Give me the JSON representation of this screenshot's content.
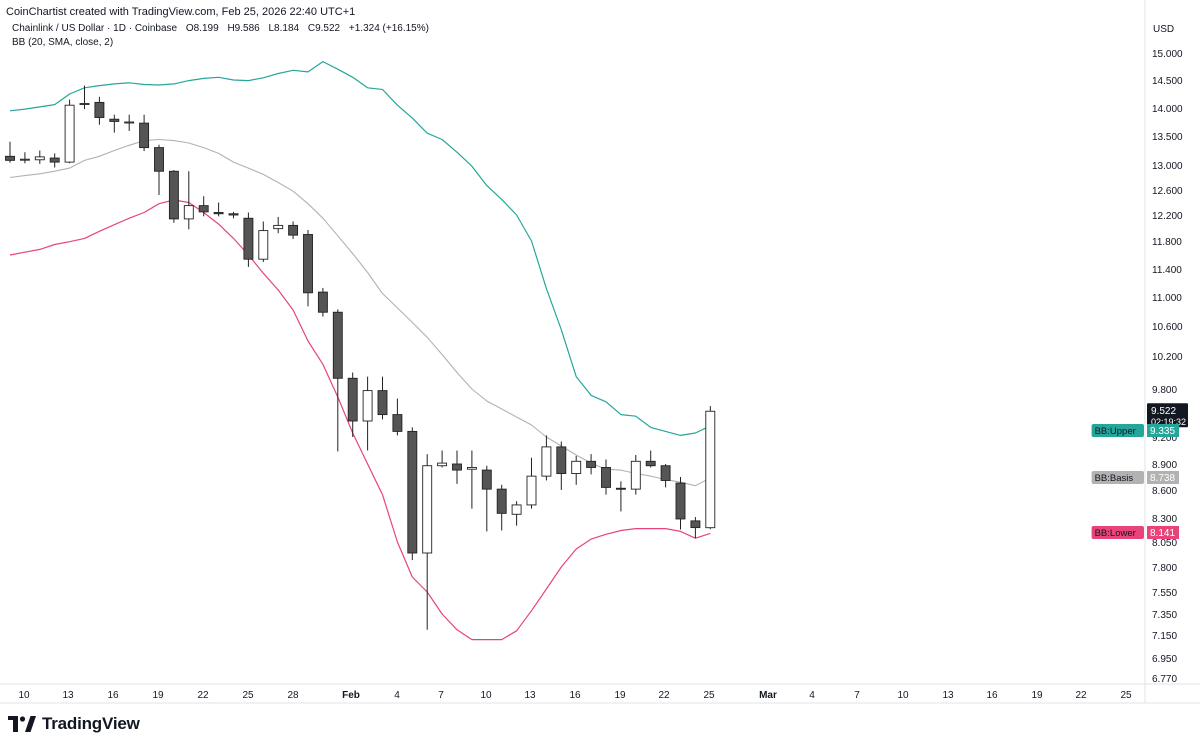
{
  "header": {
    "attribution": "CoinChartist created with TradingView.com, Feb 25, 2026 22:40 UTC+1",
    "symbol": "Chainlink / US Dollar · 1D · Coinbase",
    "open": "O8.199",
    "high": "H9.586",
    "low": "L8.184",
    "close": "C9.522",
    "change": "+1.324 (+16.15%)",
    "indicator": "BB (20, SMA, close, 2)"
  },
  "brand": {
    "name": "TradingView"
  },
  "colors": {
    "up_body": "#ffffff",
    "down_body": "#555555",
    "candle_border": "#222222",
    "bb_upper": "#26a69a",
    "bb_basis": "#b2b2b2",
    "bb_lower": "#e8447a"
  },
  "chart_data": {
    "type": "candlestick",
    "currency": "USD",
    "y_range": [
      6.65,
      15.2
    ],
    "y_ticks": [
      "15.000",
      "14.500",
      "14.000",
      "13.500",
      "13.000",
      "12.600",
      "12.200",
      "11.800",
      "11.400",
      "11.000",
      "10.600",
      "10.200",
      "9.800",
      "9.200",
      "8.900",
      "8.600",
      "8.300",
      "8.050",
      "7.800",
      "7.550",
      "7.350",
      "7.150",
      "6.950",
      "6.770"
    ],
    "x_ticks": [
      "10",
      "13",
      "16",
      "19",
      "22",
      "25",
      "28",
      "Feb",
      "4",
      "7",
      "10",
      "13",
      "16",
      "19",
      "22",
      "25",
      "Mar",
      "4",
      "7",
      "10",
      "13",
      "16",
      "19",
      "22",
      "25"
    ],
    "candles": [
      {
        "o": 13.15,
        "h": 13.4,
        "l": 13.04,
        "c": 13.08
      },
      {
        "o": 13.1,
        "h": 13.22,
        "l": 13.03,
        "c": 13.1
      },
      {
        "o": 13.09,
        "h": 13.25,
        "l": 13.02,
        "c": 13.14
      },
      {
        "o": 13.12,
        "h": 13.2,
        "l": 12.96,
        "c": 13.05
      },
      {
        "o": 13.05,
        "h": 14.15,
        "l": 13.03,
        "c": 14.05
      },
      {
        "o": 14.07,
        "h": 14.4,
        "l": 13.98,
        "c": 14.08
      },
      {
        "o": 14.1,
        "h": 14.2,
        "l": 13.7,
        "c": 13.83
      },
      {
        "o": 13.8,
        "h": 13.88,
        "l": 13.56,
        "c": 13.76
      },
      {
        "o": 13.75,
        "h": 13.88,
        "l": 13.59,
        "c": 13.75
      },
      {
        "o": 13.73,
        "h": 13.88,
        "l": 13.24,
        "c": 13.3
      },
      {
        "o": 13.3,
        "h": 13.35,
        "l": 12.52,
        "c": 12.9
      },
      {
        "o": 12.9,
        "h": 12.92,
        "l": 12.08,
        "c": 12.14
      },
      {
        "o": 12.14,
        "h": 12.9,
        "l": 11.98,
        "c": 12.35
      },
      {
        "o": 12.35,
        "h": 12.5,
        "l": 12.18,
        "c": 12.25
      },
      {
        "o": 12.24,
        "h": 12.4,
        "l": 12.18,
        "c": 12.22
      },
      {
        "o": 12.22,
        "h": 12.25,
        "l": 12.15,
        "c": 12.2
      },
      {
        "o": 12.15,
        "h": 12.24,
        "l": 11.43,
        "c": 11.54
      },
      {
        "o": 11.54,
        "h": 12.1,
        "l": 11.5,
        "c": 11.96
      },
      {
        "o": 11.99,
        "h": 12.17,
        "l": 11.92,
        "c": 12.04
      },
      {
        "o": 12.04,
        "h": 12.1,
        "l": 11.83,
        "c": 11.89
      },
      {
        "o": 11.9,
        "h": 11.97,
        "l": 10.87,
        "c": 11.06
      },
      {
        "o": 11.07,
        "h": 11.13,
        "l": 10.73,
        "c": 10.79
      },
      {
        "o": 10.79,
        "h": 10.83,
        "l": 9.04,
        "c": 9.93
      },
      {
        "o": 9.93,
        "h": 10.0,
        "l": 9.2,
        "c": 9.4
      },
      {
        "o": 9.4,
        "h": 9.95,
        "l": 9.05,
        "c": 9.78
      },
      {
        "o": 9.78,
        "h": 9.95,
        "l": 9.42,
        "c": 9.48
      },
      {
        "o": 9.48,
        "h": 9.68,
        "l": 9.22,
        "c": 9.27
      },
      {
        "o": 9.27,
        "h": 9.32,
        "l": 7.87,
        "c": 7.94
      },
      {
        "o": 7.94,
        "h": 9.01,
        "l": 7.2,
        "c": 8.88
      },
      {
        "o": 8.88,
        "h": 9.05,
        "l": 8.86,
        "c": 8.91
      },
      {
        "o": 8.9,
        "h": 9.05,
        "l": 8.67,
        "c": 8.83
      },
      {
        "o": 8.84,
        "h": 9.05,
        "l": 8.4,
        "c": 8.86
      },
      {
        "o": 8.83,
        "h": 8.88,
        "l": 8.16,
        "c": 8.61
      },
      {
        "o": 8.61,
        "h": 8.66,
        "l": 8.17,
        "c": 8.35
      },
      {
        "o": 8.34,
        "h": 8.48,
        "l": 8.22,
        "c": 8.44
      },
      {
        "o": 8.44,
        "h": 8.97,
        "l": 8.4,
        "c": 8.76
      },
      {
        "o": 8.76,
        "h": 9.22,
        "l": 8.71,
        "c": 9.09
      },
      {
        "o": 9.09,
        "h": 9.15,
        "l": 8.6,
        "c": 8.79
      },
      {
        "o": 8.79,
        "h": 8.99,
        "l": 8.66,
        "c": 8.93
      },
      {
        "o": 8.93,
        "h": 9.01,
        "l": 8.78,
        "c": 8.86
      },
      {
        "o": 8.86,
        "h": 8.95,
        "l": 8.55,
        "c": 8.63
      },
      {
        "o": 8.62,
        "h": 8.7,
        "l": 8.37,
        "c": 8.61
      },
      {
        "o": 8.61,
        "h": 9.0,
        "l": 8.55,
        "c": 8.93
      },
      {
        "o": 8.93,
        "h": 9.05,
        "l": 8.86,
        "c": 8.88
      },
      {
        "o": 8.88,
        "h": 8.9,
        "l": 8.63,
        "c": 8.71
      },
      {
        "o": 8.68,
        "h": 8.75,
        "l": 8.18,
        "c": 8.29
      },
      {
        "o": 8.27,
        "h": 8.31,
        "l": 8.09,
        "c": 8.2
      },
      {
        "o": 8.199,
        "h": 9.586,
        "l": 8.184,
        "c": 9.522
      }
    ],
    "series": [
      {
        "name": "BB:Upper",
        "current": "9.335",
        "values": [
          13.95,
          13.98,
          14.02,
          14.06,
          14.25,
          14.36,
          14.4,
          14.43,
          14.45,
          14.42,
          14.41,
          14.43,
          14.49,
          14.53,
          14.55,
          14.5,
          14.49,
          14.54,
          14.62,
          14.68,
          14.65,
          14.84,
          14.7,
          14.55,
          14.36,
          14.33,
          14.05,
          13.82,
          13.55,
          13.44,
          13.22,
          12.98,
          12.67,
          12.45,
          12.2,
          11.8,
          11.12,
          10.55,
          9.95,
          9.72,
          9.64,
          9.48,
          9.46,
          9.32,
          9.27,
          9.22,
          9.25,
          9.34
        ]
      },
      {
        "name": "BB:Basis",
        "current": "8.738",
        "values": [
          12.8,
          12.83,
          12.86,
          12.9,
          12.95,
          13.08,
          13.15,
          13.25,
          13.34,
          13.42,
          13.44,
          13.42,
          13.38,
          13.3,
          13.2,
          13.05,
          12.95,
          12.85,
          12.72,
          12.58,
          12.38,
          12.15,
          11.88,
          11.62,
          11.35,
          11.05,
          10.85,
          10.65,
          10.45,
          10.22,
          10.0,
          9.8,
          9.65,
          9.55,
          9.45,
          9.35,
          9.2,
          9.1,
          9.0,
          8.91,
          8.84,
          8.83,
          8.79,
          8.76,
          8.72,
          8.69,
          8.65,
          8.74
        ]
      },
      {
        "name": "BB:Lower",
        "current": "8.141",
        "values": [
          11.6,
          11.64,
          11.68,
          11.75,
          11.79,
          11.84,
          11.95,
          12.05,
          12.15,
          12.24,
          12.38,
          12.44,
          12.4,
          12.24,
          12.06,
          11.84,
          11.6,
          11.34,
          11.1,
          10.82,
          10.4,
          10.1,
          9.7,
          9.25,
          8.9,
          8.55,
          8.05,
          7.7,
          7.55,
          7.35,
          7.2,
          7.11,
          7.11,
          7.11,
          7.19,
          7.38,
          7.58,
          7.8,
          7.98,
          8.08,
          8.13,
          8.17,
          8.19,
          8.19,
          8.19,
          8.16,
          8.09,
          8.14
        ]
      }
    ],
    "last_price": "9.522",
    "countdown": "02:19:32"
  }
}
